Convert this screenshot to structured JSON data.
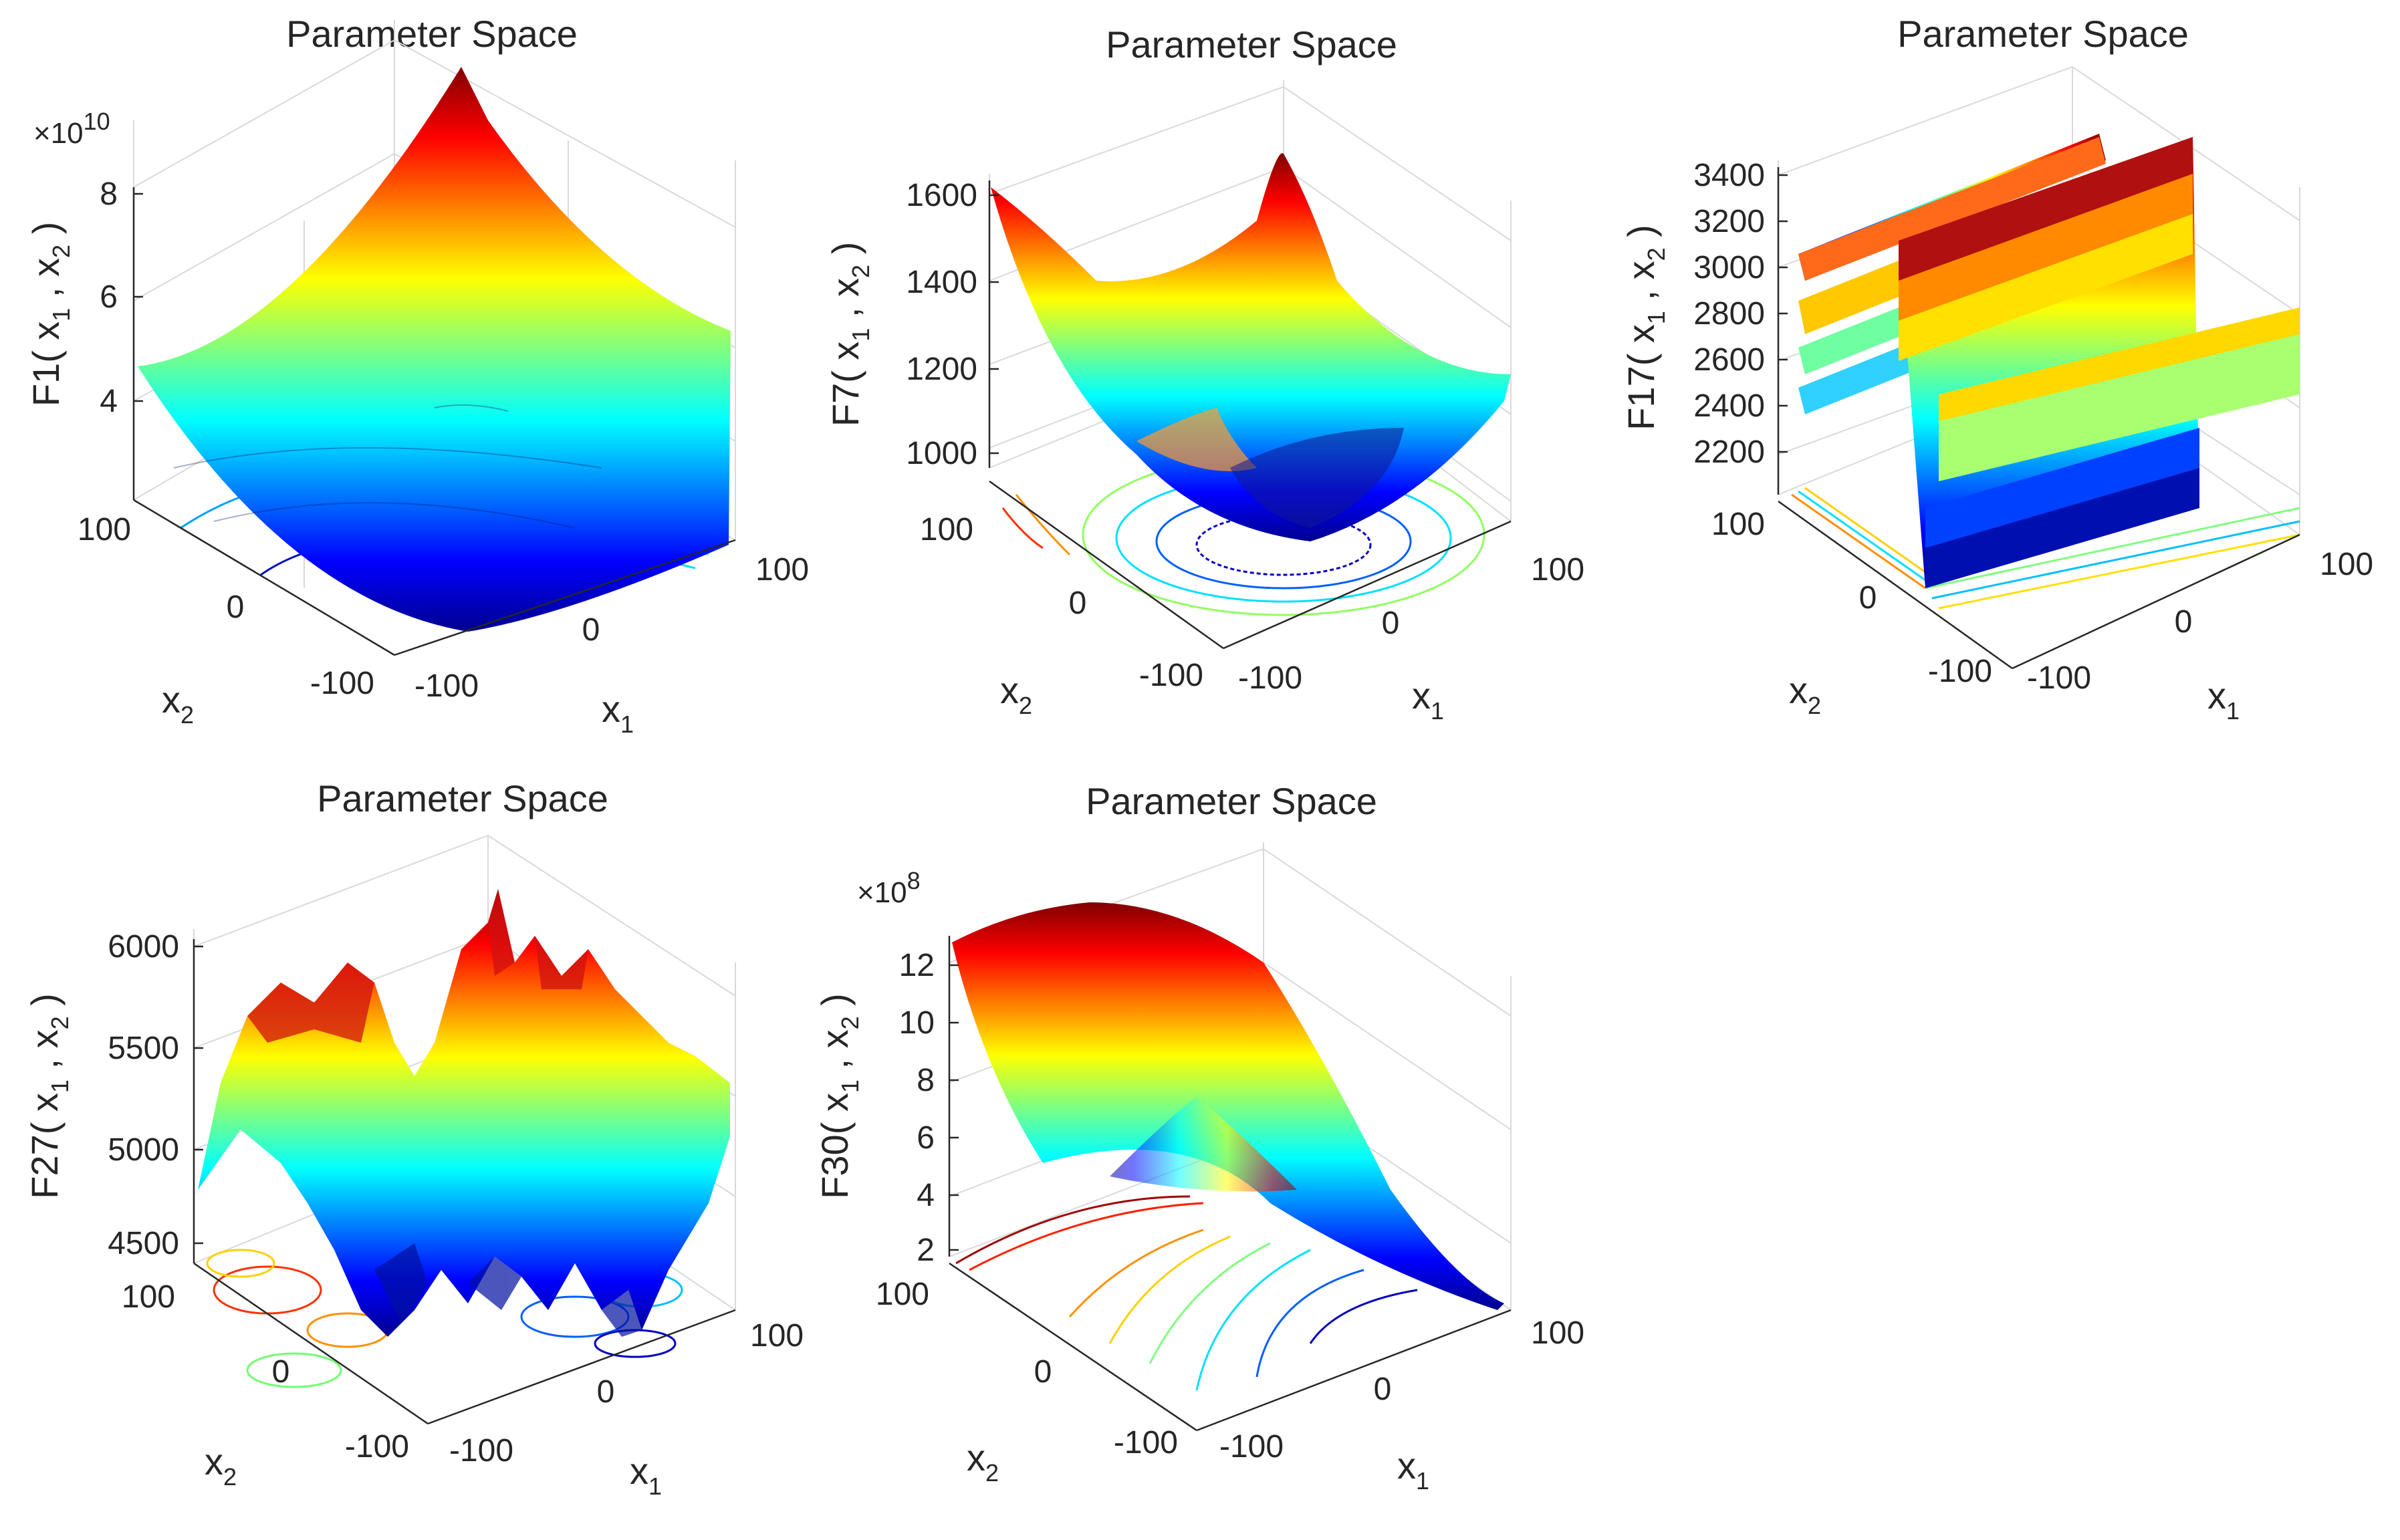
{
  "figure_title": "",
  "chart_data": [
    {
      "id": "F1",
      "type": "surface3d",
      "title": "Parameter Space",
      "xlabel": "x",
      "xlabel_sub": "1",
      "ylabel": "x",
      "ylabel_sub": "2",
      "zlabel": "F1( x1 , x2 )",
      "zlabel_parts": [
        "F1( x",
        "1",
        " , x",
        "2",
        " )"
      ],
      "x_ticks": [
        "-100",
        "0",
        "100"
      ],
      "y_ticks": [
        "-100",
        "0",
        "100"
      ],
      "z_ticks": [
        "4",
        "6",
        "8"
      ],
      "z_tick_values": [
        4,
        6,
        8
      ],
      "z_multiplier": "×10",
      "z_exponent": "10",
      "xlim": [
        -100,
        100
      ],
      "ylim": [
        -100,
        100
      ],
      "zlim": [
        2,
        8.5
      ],
      "colormap": "jet",
      "contour_projection": true
    },
    {
      "id": "F7",
      "type": "surface3d",
      "title": "Parameter Space",
      "xlabel": "x",
      "xlabel_sub": "1",
      "ylabel": "x",
      "ylabel_sub": "2",
      "zlabel": "F7( x1 , x2 )",
      "zlabel_parts": [
        "F7( x",
        "1",
        " , x",
        "2",
        " )"
      ],
      "x_ticks": [
        "-100",
        "0",
        "100"
      ],
      "y_ticks": [
        "-100",
        "0",
        "100"
      ],
      "z_ticks": [
        "1000",
        "1200",
        "1400",
        "1600"
      ],
      "z_tick_values": [
        1000,
        1200,
        1400,
        1600
      ],
      "z_multiplier": "",
      "z_exponent": "",
      "xlim": [
        -100,
        100
      ],
      "ylim": [
        -100,
        100
      ],
      "zlim": [
        890,
        1650
      ],
      "colormap": "jet",
      "contour_projection": true
    },
    {
      "id": "F17",
      "type": "surface3d",
      "title": "Parameter Space",
      "xlabel": "x",
      "xlabel_sub": "1",
      "ylabel": "x",
      "ylabel_sub": "2",
      "zlabel": "F17( x1 , x2 )",
      "zlabel_parts": [
        "F17( x",
        "1",
        " , x",
        "2",
        " )"
      ],
      "x_ticks": [
        "-100",
        "0",
        "100"
      ],
      "y_ticks": [
        "-100",
        "0",
        "100"
      ],
      "z_ticks": [
        "2200",
        "2400",
        "2600",
        "2800",
        "3000",
        "3200",
        "3400"
      ],
      "z_tick_values": [
        2200,
        2400,
        2600,
        2800,
        3000,
        3200,
        3400
      ],
      "z_multiplier": "",
      "z_exponent": "",
      "xlim": [
        -100,
        100
      ],
      "ylim": [
        -100,
        100
      ],
      "zlim": [
        2000,
        3450
      ],
      "colormap": "jet",
      "contour_projection": true
    },
    {
      "id": "F27",
      "type": "surface3d",
      "title": "Parameter Space",
      "xlabel": "x",
      "xlabel_sub": "1",
      "ylabel": "x",
      "ylabel_sub": "2",
      "zlabel": "F27( x1 , x2 )",
      "zlabel_parts": [
        "F27( x",
        "1",
        " , x",
        "2",
        " )"
      ],
      "x_ticks": [
        "-100",
        "0",
        "100"
      ],
      "y_ticks": [
        "-100",
        "0",
        "100"
      ],
      "z_ticks": [
        "4500",
        "5000",
        "5500",
        "6000"
      ],
      "z_tick_values": [
        4500,
        5000,
        5500,
        6000
      ],
      "z_multiplier": "",
      "z_exponent": "",
      "xlim": [
        -100,
        100
      ],
      "ylim": [
        -100,
        100
      ],
      "zlim": [
        4450,
        6000
      ],
      "colormap": "jet",
      "contour_projection": true
    },
    {
      "id": "F30",
      "type": "surface3d",
      "title": "Parameter Space",
      "xlabel": "x",
      "xlabel_sub": "1",
      "ylabel": "x",
      "ylabel_sub": "2",
      "zlabel": "F30( x1 , x2 )",
      "zlabel_parts": [
        "F30( x",
        "1",
        " , x",
        "2",
        " )"
      ],
      "x_ticks": [
        "-100",
        "0",
        "100"
      ],
      "y_ticks": [
        "-100",
        "0",
        "100"
      ],
      "z_ticks": [
        "2",
        "4",
        "6",
        "8",
        "10",
        "12"
      ],
      "z_tick_values": [
        2,
        4,
        6,
        8,
        10,
        12
      ],
      "z_multiplier": "×10",
      "z_exponent": "8",
      "xlim": [
        -100,
        100
      ],
      "ylim": [
        -100,
        100
      ],
      "zlim": [
        1.5,
        13.5
      ],
      "colormap": "jet",
      "contour_projection": true
    }
  ]
}
